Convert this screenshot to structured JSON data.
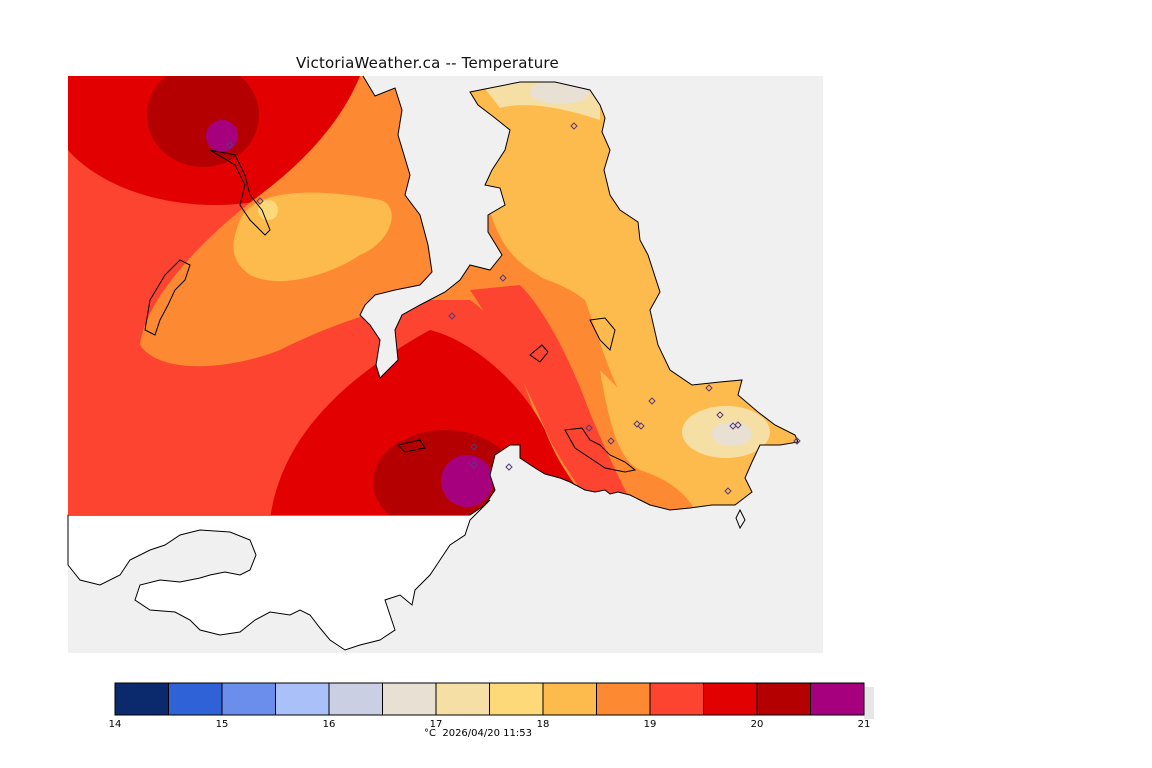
{
  "header": {
    "title": "VictoriaWeather.ca -- Temperature"
  },
  "legend": {
    "unit": "°C",
    "timestamp": "2026/04/20 11:53",
    "min": 14,
    "max": 21,
    "step": 0.5,
    "tick_labels": [
      "14",
      "15",
      "16",
      "17",
      "18",
      "19",
      "20",
      "21"
    ],
    "colors": [
      "#0b2a6e",
      "#2e62d6",
      "#6b8eec",
      "#a9c1f8",
      "#cacfe4",
      "#e8e0d2",
      "#f6dfa4",
      "#fdd97a",
      "#fdbb4d",
      "#fd8a32",
      "#fc4430",
      "#e30000",
      "#b40000",
      "#a6007f"
    ]
  },
  "map": {
    "background_sea": "#f0f0f0",
    "land_outside_field": "#ffffff",
    "coast_color": "#000000",
    "station_color": "#5a3a7a"
  }
}
